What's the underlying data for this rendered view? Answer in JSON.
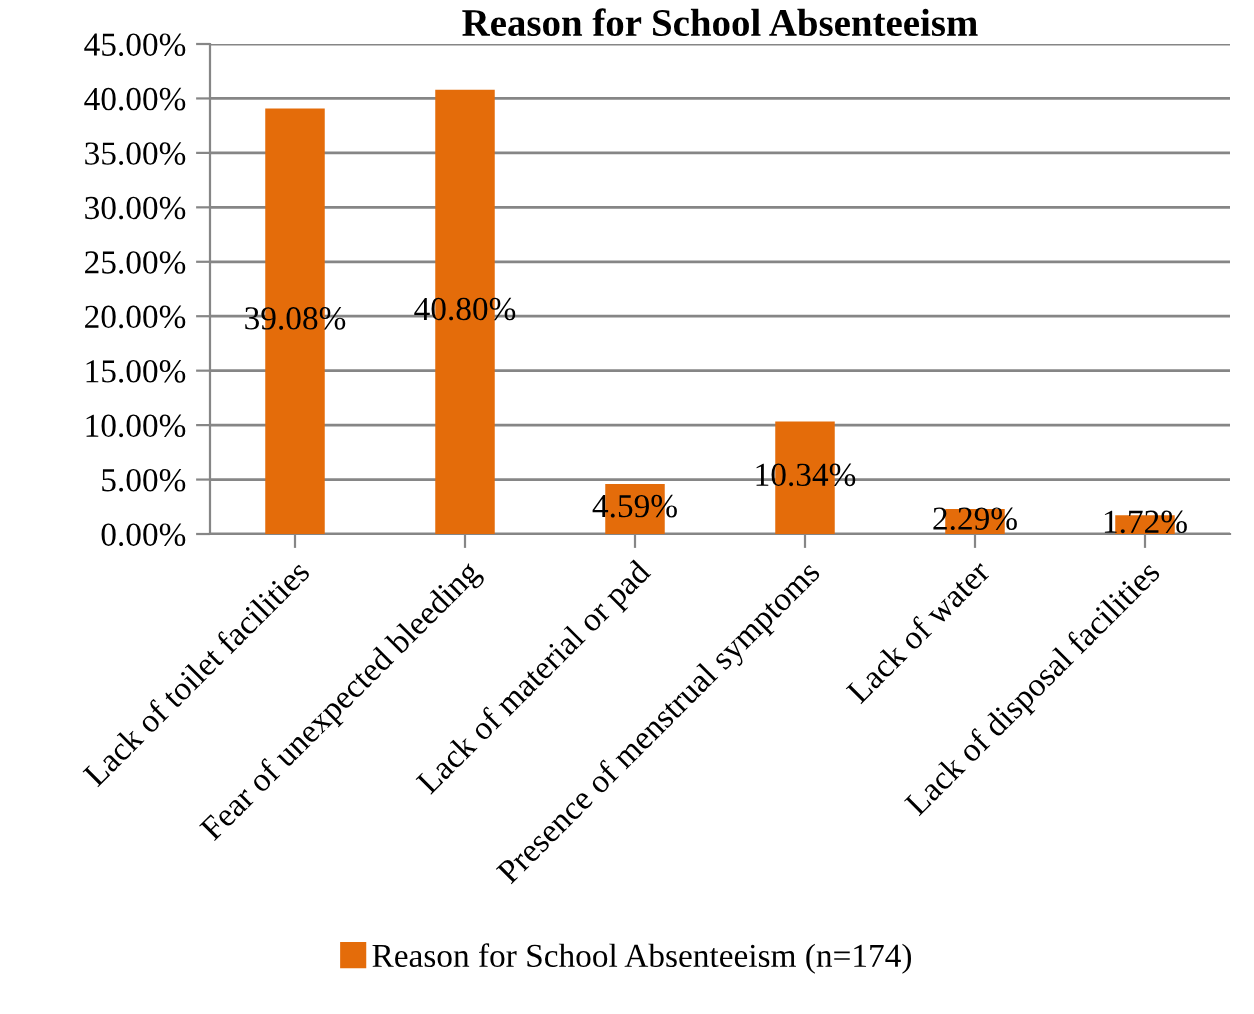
{
  "chart_data": {
    "type": "bar",
    "title": "Reason for School Absenteeism",
    "categories": [
      "Lack of toilet facilities",
      "Fear of unexpected bleeding",
      "Lack of material or pad",
      "Presence of menstrual symptoms",
      "Lack of water",
      "Lack of disposal facilities"
    ],
    "series": [
      {
        "name": "Reason for School Absenteeism (n=174)",
        "color": "#e46c0a",
        "values": [
          39.08,
          40.8,
          4.59,
          10.34,
          2.29,
          1.72
        ],
        "value_labels": [
          "39.08%",
          "40.80%",
          "4.59%",
          "10.34%",
          "2.29%",
          "1.72%"
        ]
      }
    ],
    "ylim": [
      0,
      45
    ],
    "yticks": [
      {
        "value": 0,
        "label": "0.00%"
      },
      {
        "value": 5,
        "label": "5.00%"
      },
      {
        "value": 10,
        "label": "10.00%"
      },
      {
        "value": 15,
        "label": "15.00%"
      },
      {
        "value": 20,
        "label": "20.00%"
      },
      {
        "value": 25,
        "label": "25.00%"
      },
      {
        "value": 30,
        "label": "30.00%"
      },
      {
        "value": 35,
        "label": "35.00%"
      },
      {
        "value": 40,
        "label": "40.00%"
      },
      {
        "value": 45,
        "label": "45.00%"
      }
    ],
    "grid": "y",
    "legend": "bottom"
  }
}
